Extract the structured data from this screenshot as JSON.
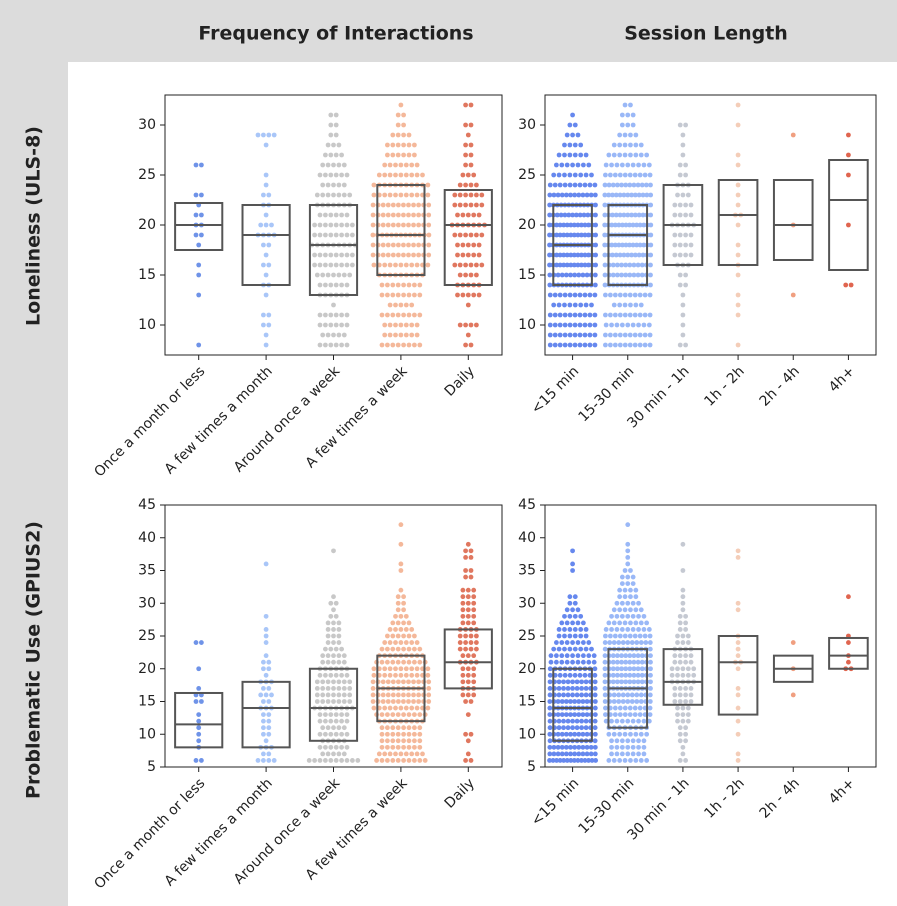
{
  "column_titles": [
    "Frequency of Interactions",
    "Session Length"
  ],
  "row_titles": [
    "Loneliness (ULS-8)",
    "Problematic Use (GPIUS2)"
  ],
  "chart_data": [
    {
      "type": "box",
      "categories": [
        "Once a month or less",
        "A few times a month",
        "Around once a week",
        "A few times a week",
        "Daily"
      ],
      "colors": [
        "#6f93e8",
        "#a9c6f8",
        "#c8c8c8",
        "#f4b89a",
        "#e0775f"
      ],
      "ylim": [
        7,
        33
      ],
      "yticks": [
        10,
        15,
        20,
        25,
        30
      ],
      "q1": [
        17.5,
        14,
        13,
        15,
        14
      ],
      "median": [
        20,
        19,
        18,
        19,
        20
      ],
      "q3": [
        22.2,
        22,
        22,
        24,
        23.5
      ],
      "points": [
        [
          8,
          13,
          15,
          16,
          18,
          19,
          20,
          21,
          22,
          23,
          26
        ],
        [
          8,
          9,
          10,
          11,
          13,
          14,
          15,
          16,
          17,
          18,
          19,
          20,
          21,
          22,
          23,
          24,
          25,
          28,
          29
        ],
        [
          8,
          9,
          10,
          11,
          12,
          13,
          14,
          15,
          16,
          17,
          18,
          19,
          20,
          21,
          22,
          23,
          24,
          25,
          26,
          27,
          28,
          29,
          30,
          31
        ],
        [
          8,
          9,
          10,
          11,
          12,
          13,
          14,
          15,
          16,
          17,
          18,
          19,
          20,
          21,
          22,
          23,
          24,
          25,
          26,
          27,
          28,
          29,
          30,
          31,
          32
        ],
        [
          8,
          9,
          10,
          12,
          13,
          14,
          15,
          16,
          17,
          18,
          19,
          20,
          21,
          22,
          23,
          24,
          25,
          26,
          27,
          28,
          29,
          30,
          32
        ]
      ],
      "counts": [
        [
          1,
          1,
          1,
          1,
          1,
          2,
          2,
          2,
          1,
          2,
          2
        ],
        [
          1,
          1,
          2,
          2,
          1,
          2,
          1,
          2,
          1,
          2,
          4,
          3,
          1,
          2,
          2,
          1,
          1,
          1,
          4
        ],
        [
          6,
          5,
          6,
          6,
          1,
          6,
          6,
          7,
          8,
          8,
          9,
          8,
          8,
          6,
          7,
          7,
          5,
          6,
          5,
          4,
          3,
          2,
          2,
          2
        ],
        [
          8,
          7,
          7,
          8,
          5,
          8,
          8,
          9,
          11,
          12,
          12,
          13,
          12,
          12,
          12,
          11,
          11,
          9,
          7,
          6,
          6,
          4,
          2,
          2,
          1
        ],
        [
          2,
          1,
          4,
          1,
          5,
          5,
          4,
          6,
          5,
          5,
          6,
          7,
          5,
          6,
          6,
          4,
          3,
          2,
          2,
          2,
          1,
          2,
          2
        ]
      ]
    },
    {
      "type": "box",
      "categories": [
        "<15 min",
        "15-30 min",
        "30 min - 1h",
        "1h - 2h",
        "2h - 4h",
        "4h+"
      ],
      "colors": [
        "#6688ee",
        "#9ab8f7",
        "#c5c9d2",
        "#f4cdb8",
        "#f09f80",
        "#e0654f"
      ],
      "ylim": [
        7,
        33
      ],
      "yticks": [
        10,
        15,
        20,
        25,
        30
      ],
      "q1": [
        14,
        14,
        16,
        16,
        16.5,
        15.5
      ],
      "median": [
        18,
        19,
        20,
        21,
        20,
        22.5
      ],
      "q3": [
        22,
        22,
        24,
        24.5,
        24.5,
        26.5
      ],
      "points": [
        [
          8,
          9,
          10,
          11,
          12,
          13,
          14,
          15,
          16,
          17,
          18,
          19,
          20,
          21,
          22,
          23,
          24,
          25,
          26,
          27,
          28,
          29,
          30,
          31
        ],
        [
          8,
          9,
          10,
          11,
          12,
          13,
          14,
          15,
          16,
          17,
          18,
          19,
          20,
          21,
          22,
          23,
          24,
          25,
          26,
          27,
          28,
          29,
          30,
          31,
          32
        ],
        [
          8,
          9,
          10,
          11,
          12,
          13,
          14,
          15,
          16,
          17,
          18,
          19,
          20,
          21,
          22,
          23,
          24,
          25,
          26,
          27,
          28,
          29,
          30
        ],
        [
          8,
          11,
          12,
          13,
          15,
          16,
          17,
          18,
          20,
          21,
          22,
          23,
          24,
          26,
          27,
          30,
          32
        ],
        [
          13,
          20,
          29
        ],
        [
          14,
          20,
          25,
          27,
          29
        ]
      ],
      "counts": [
        [
          10,
          10,
          10,
          10,
          8,
          10,
          12,
          12,
          14,
          14,
          14,
          14,
          14,
          13,
          13,
          12,
          10,
          8,
          7,
          6,
          4,
          3,
          2,
          1
        ],
        [
          10,
          10,
          9,
          10,
          6,
          10,
          12,
          12,
          12,
          13,
          14,
          14,
          14,
          13,
          13,
          13,
          12,
          10,
          9,
          8,
          6,
          4,
          3,
          3,
          2
        ],
        [
          2,
          1,
          1,
          1,
          1,
          1,
          2,
          2,
          3,
          4,
          4,
          4,
          5,
          4,
          4,
          3,
          3,
          2,
          2,
          1,
          1,
          1,
          2
        ],
        [
          1,
          1,
          1,
          1,
          1,
          1,
          1,
          1,
          1,
          2,
          1,
          1,
          1,
          1,
          1,
          1,
          1
        ],
        [
          1,
          1,
          1
        ],
        [
          2,
          1,
          1,
          1,
          1
        ]
      ]
    },
    {
      "type": "box",
      "categories": [
        "Once a month or less",
        "A few times a month",
        "Around once a week",
        "A few times a week",
        "Daily"
      ],
      "colors": [
        "#6f93e8",
        "#a9c6f8",
        "#c8c8c8",
        "#f4b89a",
        "#e0775f"
      ],
      "ylim": [
        5,
        45
      ],
      "yticks": [
        5,
        10,
        15,
        20,
        25,
        30,
        35,
        40,
        45
      ],
      "q1": [
        8,
        8,
        9,
        12,
        17
      ],
      "median": [
        11.5,
        14,
        14,
        17,
        21
      ],
      "q3": [
        16.3,
        18,
        20,
        22,
        26
      ],
      "points": [
        [
          6,
          8,
          9,
          10,
          11,
          12,
          13,
          15,
          16,
          17,
          20,
          24
        ],
        [
          6,
          7,
          8,
          9,
          10,
          11,
          12,
          13,
          14,
          15,
          16,
          17,
          18,
          19,
          20,
          21,
          22,
          24,
          25,
          26,
          28,
          36
        ],
        [
          6,
          7,
          8,
          9,
          10,
          11,
          12,
          13,
          14,
          15,
          16,
          17,
          18,
          19,
          20,
          21,
          22,
          23,
          24,
          25,
          26,
          27,
          28,
          29,
          30,
          31,
          38
        ],
        [
          6,
          7,
          8,
          9,
          10,
          11,
          12,
          13,
          14,
          15,
          16,
          17,
          18,
          19,
          20,
          21,
          22,
          23,
          24,
          25,
          26,
          27,
          28,
          29,
          30,
          31,
          32,
          35,
          36,
          39,
          42
        ],
        [
          6,
          7,
          9,
          10,
          13,
          15,
          16,
          17,
          18,
          19,
          20,
          21,
          22,
          23,
          24,
          25,
          26,
          27,
          28,
          29,
          30,
          31,
          32,
          34,
          35,
          37,
          38,
          39
        ]
      ],
      "counts": [
        [
          2,
          1,
          1,
          1,
          1,
          1,
          1,
          2,
          2,
          1,
          1,
          2
        ],
        [
          4,
          2,
          3,
          1,
          2,
          2,
          2,
          2,
          3,
          2,
          3,
          2,
          3,
          1,
          2,
          2,
          1,
          1,
          1,
          1,
          1,
          1
        ],
        [
          10,
          5,
          6,
          5,
          6,
          5,
          6,
          6,
          8,
          7,
          7,
          7,
          7,
          6,
          6,
          5,
          5,
          4,
          3,
          3,
          3,
          3,
          2,
          1,
          2,
          1,
          1
        ],
        [
          10,
          9,
          8,
          8,
          8,
          8,
          9,
          10,
          11,
          12,
          12,
          12,
          12,
          11,
          11,
          10,
          9,
          8,
          7,
          6,
          5,
          4,
          3,
          2,
          2,
          2,
          1,
          1,
          1,
          1,
          1
        ],
        [
          2,
          1,
          1,
          2,
          1,
          2,
          3,
          3,
          3,
          3,
          3,
          4,
          3,
          4,
          4,
          4,
          4,
          3,
          3,
          3,
          3,
          3,
          3,
          2,
          2,
          2,
          2,
          1
        ]
      ]
    },
    {
      "type": "box",
      "categories": [
        "<15 min",
        "15-30 min",
        "30 min - 1h",
        "1h - 2h",
        "2h - 4h",
        "4h+"
      ],
      "colors": [
        "#6688ee",
        "#9ab8f7",
        "#c5c9d2",
        "#f4cdb8",
        "#f09f80",
        "#e0654f"
      ],
      "ylim": [
        5,
        45
      ],
      "yticks": [
        5,
        10,
        15,
        20,
        25,
        30,
        35,
        40,
        45
      ],
      "q1": [
        9,
        11,
        14.5,
        13,
        18,
        20
      ],
      "median": [
        14,
        17,
        18,
        21,
        20,
        22
      ],
      "q3": [
        20,
        23,
        23,
        25,
        22,
        24.7
      ],
      "points": [
        [
          6,
          7,
          8,
          9,
          10,
          11,
          12,
          13,
          14,
          15,
          16,
          17,
          18,
          19,
          20,
          21,
          22,
          23,
          24,
          25,
          26,
          27,
          28,
          29,
          30,
          31,
          35,
          36,
          38
        ],
        [
          6,
          7,
          8,
          9,
          10,
          11,
          12,
          13,
          14,
          15,
          16,
          17,
          18,
          19,
          20,
          21,
          22,
          23,
          24,
          25,
          26,
          27,
          28,
          29,
          30,
          31,
          32,
          33,
          34,
          35,
          36,
          37,
          38,
          39,
          42
        ],
        [
          6,
          7,
          8,
          9,
          10,
          11,
          12,
          13,
          14,
          15,
          16,
          17,
          18,
          19,
          20,
          21,
          22,
          23,
          24,
          25,
          26,
          27,
          28,
          29,
          30,
          31,
          32,
          35,
          39
        ],
        [
          6,
          7,
          10,
          12,
          14,
          16,
          17,
          20,
          21,
          22,
          23,
          24,
          25,
          29,
          30,
          37,
          38
        ],
        [
          16,
          20,
          24
        ],
        [
          20,
          21,
          22,
          24,
          25,
          31
        ]
      ],
      "counts": [
        [
          14,
          12,
          12,
          11,
          12,
          11,
          11,
          12,
          12,
          12,
          11,
          11,
          11,
          10,
          10,
          9,
          9,
          8,
          7,
          6,
          6,
          5,
          4,
          3,
          2,
          2,
          1,
          1,
          1
        ],
        [
          8,
          7,
          7,
          7,
          8,
          8,
          9,
          10,
          10,
          11,
          11,
          12,
          12,
          12,
          12,
          12,
          12,
          11,
          11,
          10,
          9,
          8,
          7,
          6,
          5,
          4,
          4,
          3,
          3,
          2,
          1,
          1,
          1,
          1,
          1
        ],
        [
          2,
          1,
          1,
          2,
          2,
          2,
          3,
          3,
          3,
          4,
          4,
          4,
          5,
          5,
          5,
          4,
          4,
          4,
          3,
          3,
          2,
          2,
          2,
          1,
          1,
          1,
          1,
          1,
          1
        ],
        [
          1,
          1,
          1,
          1,
          1,
          1,
          1,
          1,
          2,
          1,
          1,
          1,
          1,
          1,
          1,
          1,
          1
        ],
        [
          1,
          1,
          1
        ],
        [
          2,
          1,
          1,
          1,
          1,
          1
        ]
      ]
    }
  ]
}
